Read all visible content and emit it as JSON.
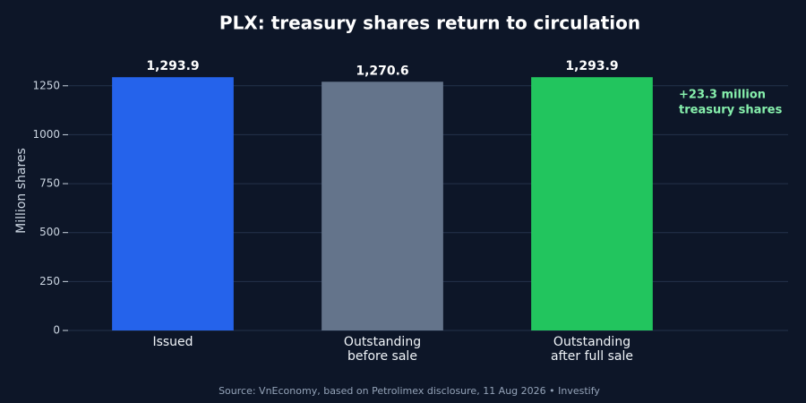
{
  "chart_data": {
    "type": "bar",
    "title": "PLX: treasury shares return to circulation",
    "categories": [
      [
        "Issued"
      ],
      [
        "Outstanding",
        "before sale"
      ],
      [
        "Outstanding",
        "after full sale"
      ]
    ],
    "values": [
      1293.9,
      1270.6,
      1293.9
    ],
    "value_labels": [
      "1,293.9",
      "1,270.6",
      "1,293.9"
    ],
    "colors": [
      "#2563eb",
      "#64748b",
      "#22c55e"
    ],
    "ylabel": "Million shares",
    "ylim": [
      0,
      1400
    ],
    "yticks": [
      0,
      250,
      500,
      750,
      1000,
      1250
    ],
    "grid": true,
    "annotation": [
      "+23.3 million",
      "treasury shares"
    ],
    "source": "Source: VnEconomy, based on Petrolimex disclosure, 11 Aug 2026 • Investify"
  }
}
